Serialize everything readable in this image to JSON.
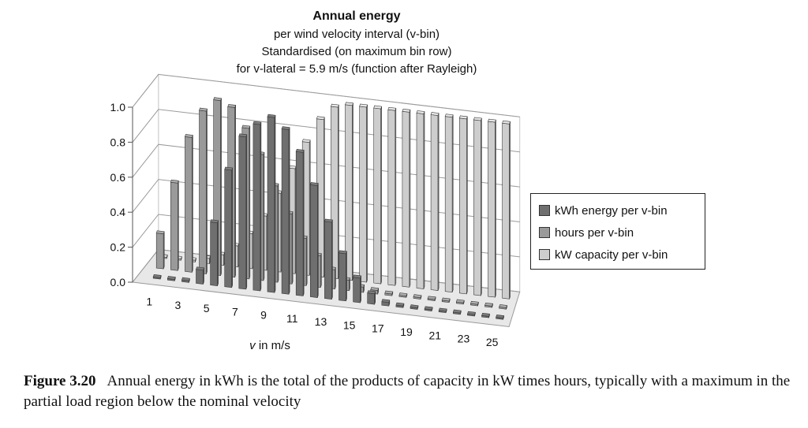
{
  "chart_data": {
    "type": "bar",
    "title": "Annual energy",
    "subtitle_lines": [
      "per wind velocity interval (v-bin)",
      "Standardised (on maximum bin row)",
      "for v-lateral = 5.9 m/s (function after Rayleigh)"
    ],
    "xlabel": "v in m/s",
    "ylabel": "",
    "ylim": [
      0,
      1.0
    ],
    "y_ticks": [
      "0.0",
      "0.2",
      "0.4",
      "0.6",
      "0.8",
      "1.0"
    ],
    "x_tick_labels": [
      "1",
      "3",
      "5",
      "7",
      "9",
      "11",
      "13",
      "15",
      "17",
      "19",
      "21",
      "23",
      "25"
    ],
    "categories": [
      1,
      2,
      3,
      4,
      5,
      6,
      7,
      8,
      9,
      10,
      11,
      12,
      13,
      14,
      15,
      16,
      17,
      18,
      19,
      20,
      21,
      22,
      23,
      24,
      25
    ],
    "legend_position": "right",
    "grid": true,
    "series": [
      {
        "name": "kWh energy per v-bin",
        "color": "#6f6f6f",
        "values": [
          0.0,
          0.0,
          0.01,
          0.08,
          0.36,
          0.67,
          0.87,
          0.95,
          1.0,
          0.94,
          0.82,
          0.64,
          0.44,
          0.27,
          0.14,
          0.06,
          0.02,
          0.01,
          0.0,
          0.0,
          0.0,
          0.0,
          0.0,
          0.0,
          0.0
        ]
      },
      {
        "name": "hours per v-bin",
        "color": "#9a9a9a",
        "values": [
          0.2,
          0.5,
          0.77,
          0.93,
          1.0,
          0.97,
          0.86,
          0.72,
          0.55,
          0.4,
          0.27,
          0.18,
          0.11,
          0.06,
          0.03,
          0.02,
          0.01,
          0.0,
          0.0,
          0.0,
          0.0,
          0.0,
          0.0,
          0.0,
          0.0
        ]
      },
      {
        "name": "kW capacity per v-bin",
        "color": "#cdcdcd",
        "values": [
          0.0,
          0.0,
          0.01,
          0.03,
          0.06,
          0.12,
          0.2,
          0.31,
          0.45,
          0.6,
          0.76,
          0.9,
          0.98,
          1.0,
          1.0,
          1.0,
          1.0,
          1.0,
          1.0,
          1.0,
          1.0,
          1.0,
          1.0,
          1.0,
          1.0
        ]
      }
    ]
  },
  "caption": {
    "figure": "Figure 3.20",
    "text": "Annual energy in kWh is the total of the products of capacity in kW times hours, typically with a maximum in the partial load region below the nominal velocity"
  }
}
